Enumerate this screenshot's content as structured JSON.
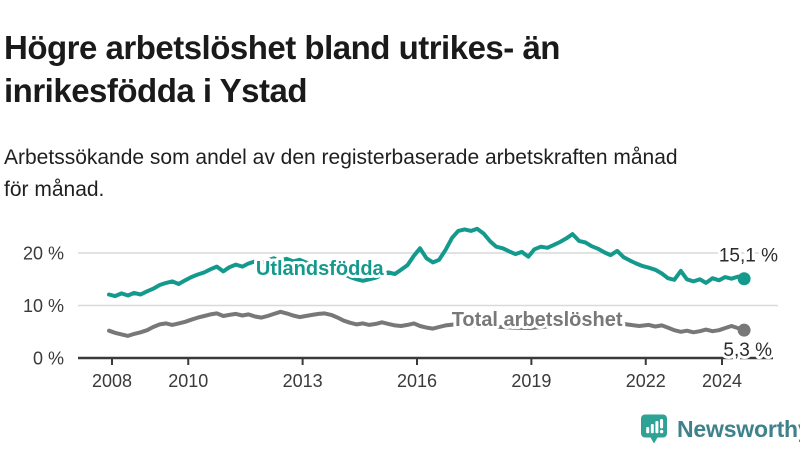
{
  "header": {
    "title_lines": [
      "Högre arbetslöshet bland utrikes- än",
      "inrikesfödda i Ystad"
    ],
    "subtitle_lines": [
      "Arbetssökande som andel av den registerbaserade arbetskraften månad",
      "för månad."
    ]
  },
  "footer": {
    "brand": "Newsworthy"
  },
  "colors": {
    "series_foreign_born": "#149a8c",
    "series_total": "#787878",
    "grid": "#d9d9d9",
    "axis": "#3a3a3a",
    "end_label_text": "#2b2b2b",
    "brand_icon": "#2da295",
    "brand_text": "#3e828b"
  },
  "chart_data": {
    "type": "line",
    "title": "Högre arbetslöshet bland utrikes- än inrikesfödda i Ystad",
    "subtitle": "Arbetssökande som andel av den registerbaserade arbetskraften månad för månad.",
    "xlabel": "",
    "ylabel": "",
    "xlim": [
      2007.8,
      2025.3
    ],
    "ylim": [
      0,
      26
    ],
    "grid": "horizontal",
    "legend": "inline-labels",
    "x_ticks": [
      2008,
      2010,
      2013,
      2016,
      2019,
      2022,
      2024
    ],
    "x_tick_labels": [
      "2008",
      "2010",
      "2013",
      "2016",
      "2019",
      "2022",
      "2024"
    ],
    "y_ticks": [
      0,
      10,
      20
    ],
    "y_tick_labels": [
      "0 %",
      "10 %",
      "20 %"
    ],
    "series": [
      {
        "name": "Total arbetslöshet",
        "slug": "total-arbetsloshet",
        "color": "#787878",
        "end_value": 5.3,
        "end_label": "5,3 %",
        "end_label_side": "below",
        "label_pos": {
          "year": 2019.15,
          "pct": 7.43
        },
        "points": [
          [
            2007.92,
            5.2
          ],
          [
            2008.08,
            4.8
          ],
          [
            2008.25,
            4.5
          ],
          [
            2008.42,
            4.2
          ],
          [
            2008.58,
            4.6
          ],
          [
            2008.75,
            4.9
          ],
          [
            2008.92,
            5.3
          ],
          [
            2009.08,
            5.9
          ],
          [
            2009.25,
            6.4
          ],
          [
            2009.42,
            6.6
          ],
          [
            2009.58,
            6.3
          ],
          [
            2009.75,
            6.6
          ],
          [
            2009.92,
            6.9
          ],
          [
            2010.08,
            7.3
          ],
          [
            2010.25,
            7.7
          ],
          [
            2010.42,
            8.0
          ],
          [
            2010.58,
            8.3
          ],
          [
            2010.75,
            8.5
          ],
          [
            2010.92,
            8.0
          ],
          [
            2011.08,
            8.2
          ],
          [
            2011.25,
            8.4
          ],
          [
            2011.42,
            8.1
          ],
          [
            2011.58,
            8.3
          ],
          [
            2011.75,
            7.9
          ],
          [
            2011.92,
            7.7
          ],
          [
            2012.08,
            8.0
          ],
          [
            2012.25,
            8.4
          ],
          [
            2012.42,
            8.8
          ],
          [
            2012.58,
            8.5
          ],
          [
            2012.75,
            8.1
          ],
          [
            2012.92,
            7.8
          ],
          [
            2013.08,
            8.0
          ],
          [
            2013.25,
            8.2
          ],
          [
            2013.42,
            8.4
          ],
          [
            2013.58,
            8.5
          ],
          [
            2013.75,
            8.2
          ],
          [
            2013.92,
            7.7
          ],
          [
            2014.08,
            7.1
          ],
          [
            2014.25,
            6.7
          ],
          [
            2014.42,
            6.4
          ],
          [
            2014.58,
            6.6
          ],
          [
            2014.75,
            6.3
          ],
          [
            2014.92,
            6.5
          ],
          [
            2015.08,
            6.8
          ],
          [
            2015.25,
            6.5
          ],
          [
            2015.42,
            6.2
          ],
          [
            2015.58,
            6.1
          ],
          [
            2015.75,
            6.3
          ],
          [
            2015.92,
            6.6
          ],
          [
            2016.08,
            6.1
          ],
          [
            2016.25,
            5.8
          ],
          [
            2016.42,
            5.6
          ],
          [
            2016.58,
            5.9
          ],
          [
            2016.75,
            6.2
          ],
          [
            2017.0,
            6.4
          ],
          [
            2017.5,
            6.2
          ],
          [
            2018.0,
            6.0
          ],
          [
            2018.5,
            5.8
          ],
          [
            2019.0,
            5.7
          ],
          [
            2019.5,
            6.1
          ],
          [
            2020.0,
            7.2
          ],
          [
            2020.5,
            7.6
          ],
          [
            2021.0,
            7.0
          ],
          [
            2021.5,
            6.4
          ],
          [
            2021.83,
            6.1
          ],
          [
            2022.08,
            6.3
          ],
          [
            2022.25,
            6.0
          ],
          [
            2022.42,
            6.2
          ],
          [
            2022.58,
            5.8
          ],
          [
            2022.75,
            5.3
          ],
          [
            2022.92,
            5.0
          ],
          [
            2023.08,
            5.2
          ],
          [
            2023.25,
            4.9
          ],
          [
            2023.42,
            5.1
          ],
          [
            2023.58,
            5.4
          ],
          [
            2023.75,
            5.1
          ],
          [
            2023.92,
            5.3
          ],
          [
            2024.08,
            5.7
          ],
          [
            2024.25,
            6.1
          ],
          [
            2024.42,
            5.7
          ],
          [
            2024.58,
            5.3
          ]
        ]
      },
      {
        "name": "Utlandsfödda",
        "slug": "utlandsfodda",
        "color": "#149a8c",
        "end_value": 15.1,
        "end_label": "15,1 %",
        "end_label_side": "above",
        "label_pos": {
          "year": 2013.45,
          "pct": 17.1
        },
        "points": [
          [
            2007.92,
            12.1
          ],
          [
            2008.08,
            11.8
          ],
          [
            2008.25,
            12.3
          ],
          [
            2008.42,
            11.9
          ],
          [
            2008.58,
            12.4
          ],
          [
            2008.75,
            12.1
          ],
          [
            2008.92,
            12.7
          ],
          [
            2009.08,
            13.2
          ],
          [
            2009.25,
            13.9
          ],
          [
            2009.42,
            14.3
          ],
          [
            2009.58,
            14.6
          ],
          [
            2009.75,
            14.1
          ],
          [
            2009.92,
            14.8
          ],
          [
            2010.08,
            15.4
          ],
          [
            2010.25,
            15.9
          ],
          [
            2010.42,
            16.3
          ],
          [
            2010.58,
            16.9
          ],
          [
            2010.75,
            17.4
          ],
          [
            2010.92,
            16.5
          ],
          [
            2011.08,
            17.3
          ],
          [
            2011.25,
            17.8
          ],
          [
            2011.42,
            17.4
          ],
          [
            2011.58,
            18.0
          ],
          [
            2011.75,
            18.4
          ],
          [
            2011.92,
            18.1
          ],
          [
            2012.08,
            18.6
          ],
          [
            2012.25,
            19.0
          ],
          [
            2012.42,
            18.5
          ],
          [
            2012.58,
            18.9
          ],
          [
            2012.75,
            18.4
          ],
          [
            2012.92,
            18.7
          ],
          [
            2013.08,
            18.2
          ],
          [
            2013.25,
            17.9
          ],
          [
            2013.42,
            17.6
          ],
          [
            2013.58,
            17.8
          ],
          [
            2013.75,
            17.2
          ],
          [
            2013.92,
            16.6
          ],
          [
            2014.08,
            16.0
          ],
          [
            2014.25,
            15.4
          ],
          [
            2014.42,
            15.0
          ],
          [
            2014.58,
            14.7
          ],
          [
            2014.75,
            15.0
          ],
          [
            2014.92,
            15.3
          ],
          [
            2015.08,
            15.8
          ],
          [
            2015.25,
            16.3
          ],
          [
            2015.42,
            16.0
          ],
          [
            2015.58,
            16.8
          ],
          [
            2015.75,
            17.7
          ],
          [
            2015.92,
            19.5
          ],
          [
            2016.08,
            20.9
          ],
          [
            2016.25,
            19.0
          ],
          [
            2016.42,
            18.2
          ],
          [
            2016.58,
            18.7
          ],
          [
            2016.75,
            20.6
          ],
          [
            2016.92,
            22.9
          ],
          [
            2017.08,
            24.2
          ],
          [
            2017.25,
            24.5
          ],
          [
            2017.42,
            24.2
          ],
          [
            2017.58,
            24.6
          ],
          [
            2017.75,
            23.7
          ],
          [
            2017.92,
            22.2
          ],
          [
            2018.08,
            21.2
          ],
          [
            2018.25,
            20.9
          ],
          [
            2018.42,
            20.3
          ],
          [
            2018.58,
            19.8
          ],
          [
            2018.75,
            20.2
          ],
          [
            2018.92,
            19.3
          ],
          [
            2019.08,
            20.7
          ],
          [
            2019.25,
            21.2
          ],
          [
            2019.42,
            21.0
          ],
          [
            2019.58,
            21.5
          ],
          [
            2019.75,
            22.1
          ],
          [
            2019.92,
            22.8
          ],
          [
            2020.08,
            23.6
          ],
          [
            2020.25,
            22.3
          ],
          [
            2020.42,
            22.0
          ],
          [
            2020.58,
            21.3
          ],
          [
            2020.75,
            20.8
          ],
          [
            2020.92,
            20.1
          ],
          [
            2021.08,
            19.6
          ],
          [
            2021.25,
            20.4
          ],
          [
            2021.42,
            19.2
          ],
          [
            2021.58,
            18.6
          ],
          [
            2021.75,
            18.0
          ],
          [
            2021.92,
            17.5
          ],
          [
            2022.08,
            17.2
          ],
          [
            2022.25,
            16.8
          ],
          [
            2022.42,
            16.1
          ],
          [
            2022.58,
            15.2
          ],
          [
            2022.75,
            14.9
          ],
          [
            2022.92,
            16.6
          ],
          [
            2023.08,
            15.0
          ],
          [
            2023.25,
            14.6
          ],
          [
            2023.42,
            15.0
          ],
          [
            2023.58,
            14.3
          ],
          [
            2023.75,
            15.2
          ],
          [
            2023.92,
            14.8
          ],
          [
            2024.08,
            15.4
          ],
          [
            2024.25,
            15.1
          ],
          [
            2024.42,
            15.5
          ],
          [
            2024.58,
            15.1
          ]
        ]
      }
    ]
  }
}
